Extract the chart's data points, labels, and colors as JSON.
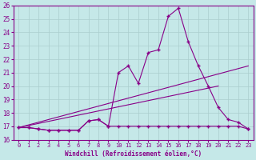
{
  "xlabel": "Windchill (Refroidissement éolien,°C)",
  "xlim": [
    -0.5,
    23.5
  ],
  "ylim": [
    16,
    26
  ],
  "xticks": [
    0,
    1,
    2,
    3,
    4,
    5,
    6,
    7,
    8,
    9,
    10,
    11,
    12,
    13,
    14,
    15,
    16,
    17,
    18,
    19,
    20,
    21,
    22,
    23
  ],
  "yticks": [
    16,
    17,
    18,
    19,
    20,
    21,
    22,
    23,
    24,
    25,
    26
  ],
  "background_color": "#c5e8e8",
  "grid_color": "#aacece",
  "line_color": "#880088",
  "line1_x": [
    0,
    1,
    2,
    3,
    4,
    5,
    6,
    7,
    8,
    9,
    10,
    11,
    12,
    13,
    14,
    15,
    16,
    17,
    18,
    19,
    20,
    21,
    22,
    23
  ],
  "line1_y": [
    16.9,
    16.9,
    16.8,
    16.7,
    16.7,
    16.7,
    16.7,
    17.4,
    17.5,
    17.0,
    17.0,
    17.0,
    17.0,
    17.0,
    17.0,
    17.0,
    17.0,
    17.0,
    17.0,
    17.0,
    17.0,
    17.0,
    17.0,
    16.8
  ],
  "line2_x": [
    0,
    1,
    2,
    3,
    4,
    5,
    6,
    7,
    8,
    9,
    10,
    11,
    12,
    13,
    14,
    15,
    16,
    17,
    18,
    19,
    20,
    21,
    22,
    23
  ],
  "line2_y": [
    16.9,
    16.9,
    16.8,
    16.7,
    16.7,
    16.7,
    16.7,
    17.4,
    17.5,
    17.0,
    21.0,
    21.5,
    20.2,
    22.5,
    22.7,
    25.2,
    25.8,
    23.3,
    21.5,
    20.0,
    18.4,
    17.5,
    17.3,
    16.8
  ],
  "line3_x": [
    0,
    23
  ],
  "line3_y": [
    16.9,
    21.5
  ],
  "line4_x": [
    0,
    20
  ],
  "line4_y": [
    16.9,
    20.0
  ]
}
